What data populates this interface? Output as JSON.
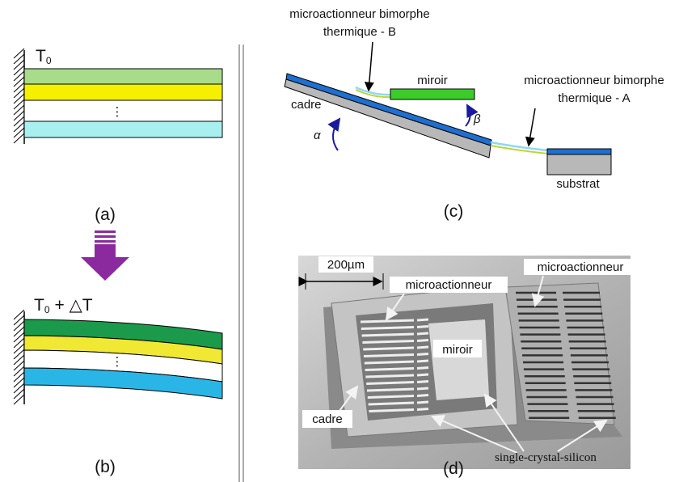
{
  "panel_a": {
    "t_label": "T",
    "t_subscript": "0",
    "ellipsis": "⋮",
    "caption": "(a)"
  },
  "panel_b": {
    "t_label": "T",
    "t_subscript": "0",
    "delta_label": "+ △T",
    "ellipsis": "⋮",
    "caption": "(b)"
  },
  "panel_c": {
    "label_b": [
      "microactionneur bimorphe",
      "thermique - B"
    ],
    "mirror": "miroir",
    "frame": "cadre",
    "alpha": "α",
    "beta": "β",
    "label_a": [
      "microactionneur bimorphe",
      "thermique - A"
    ],
    "substrate": "substrat",
    "caption": "(c)"
  },
  "panel_d": {
    "scale_bar": "200µm",
    "actuator_left": "microactionneur",
    "actuator_right": "microactionneur",
    "mirror": "miroir",
    "frame": "cadre",
    "material": "single-crystal-silicon",
    "caption": "(d)"
  }
}
